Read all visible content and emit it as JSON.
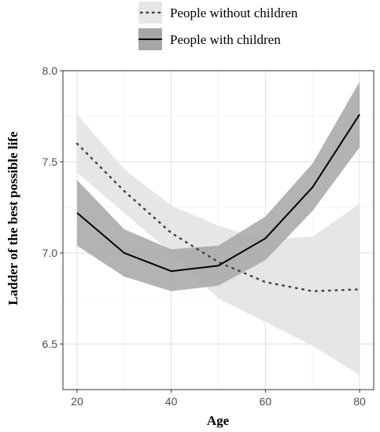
{
  "chart_data": {
    "type": "line",
    "title": "",
    "xlabel": "Age",
    "ylabel": "Ladder of the best possible life",
    "xlim": [
      17,
      83
    ],
    "ylim": [
      6.25,
      8.0
    ],
    "xticks": [
      20,
      40,
      60,
      80
    ],
    "xtick_labels": [
      "20",
      "40",
      "60",
      "80"
    ],
    "yticks": [
      6.5,
      7.0,
      7.5,
      8.0
    ],
    "ytick_labels": [
      "6.5",
      "7.0",
      "7.5",
      "8.0"
    ],
    "grid": true,
    "legend_position": "top",
    "series": [
      {
        "name": "People without children",
        "line_style": "dotted",
        "line_color": "#444444",
        "band_color": "#e6e6e6",
        "x": [
          20,
          30,
          40,
          50,
          60,
          70,
          80
        ],
        "y": [
          7.6,
          7.34,
          7.11,
          6.95,
          6.84,
          6.79,
          6.8
        ],
        "lower": [
          7.44,
          7.22,
          7.0,
          6.75,
          6.62,
          6.49,
          6.33
        ],
        "upper": [
          7.76,
          7.46,
          7.26,
          7.15,
          7.07,
          7.09,
          7.27
        ]
      },
      {
        "name": "People with children",
        "line_style": "solid",
        "line_color": "#000000",
        "band_color": "#a6a6a6",
        "x": [
          20,
          30,
          40,
          50,
          60,
          70,
          80
        ],
        "y": [
          7.22,
          7.0,
          6.9,
          6.93,
          7.08,
          7.36,
          7.76
        ],
        "lower": [
          7.04,
          6.87,
          6.79,
          6.82,
          6.96,
          7.23,
          7.58
        ],
        "upper": [
          7.4,
          7.13,
          7.02,
          7.04,
          7.2,
          7.49,
          7.94
        ]
      }
    ]
  }
}
